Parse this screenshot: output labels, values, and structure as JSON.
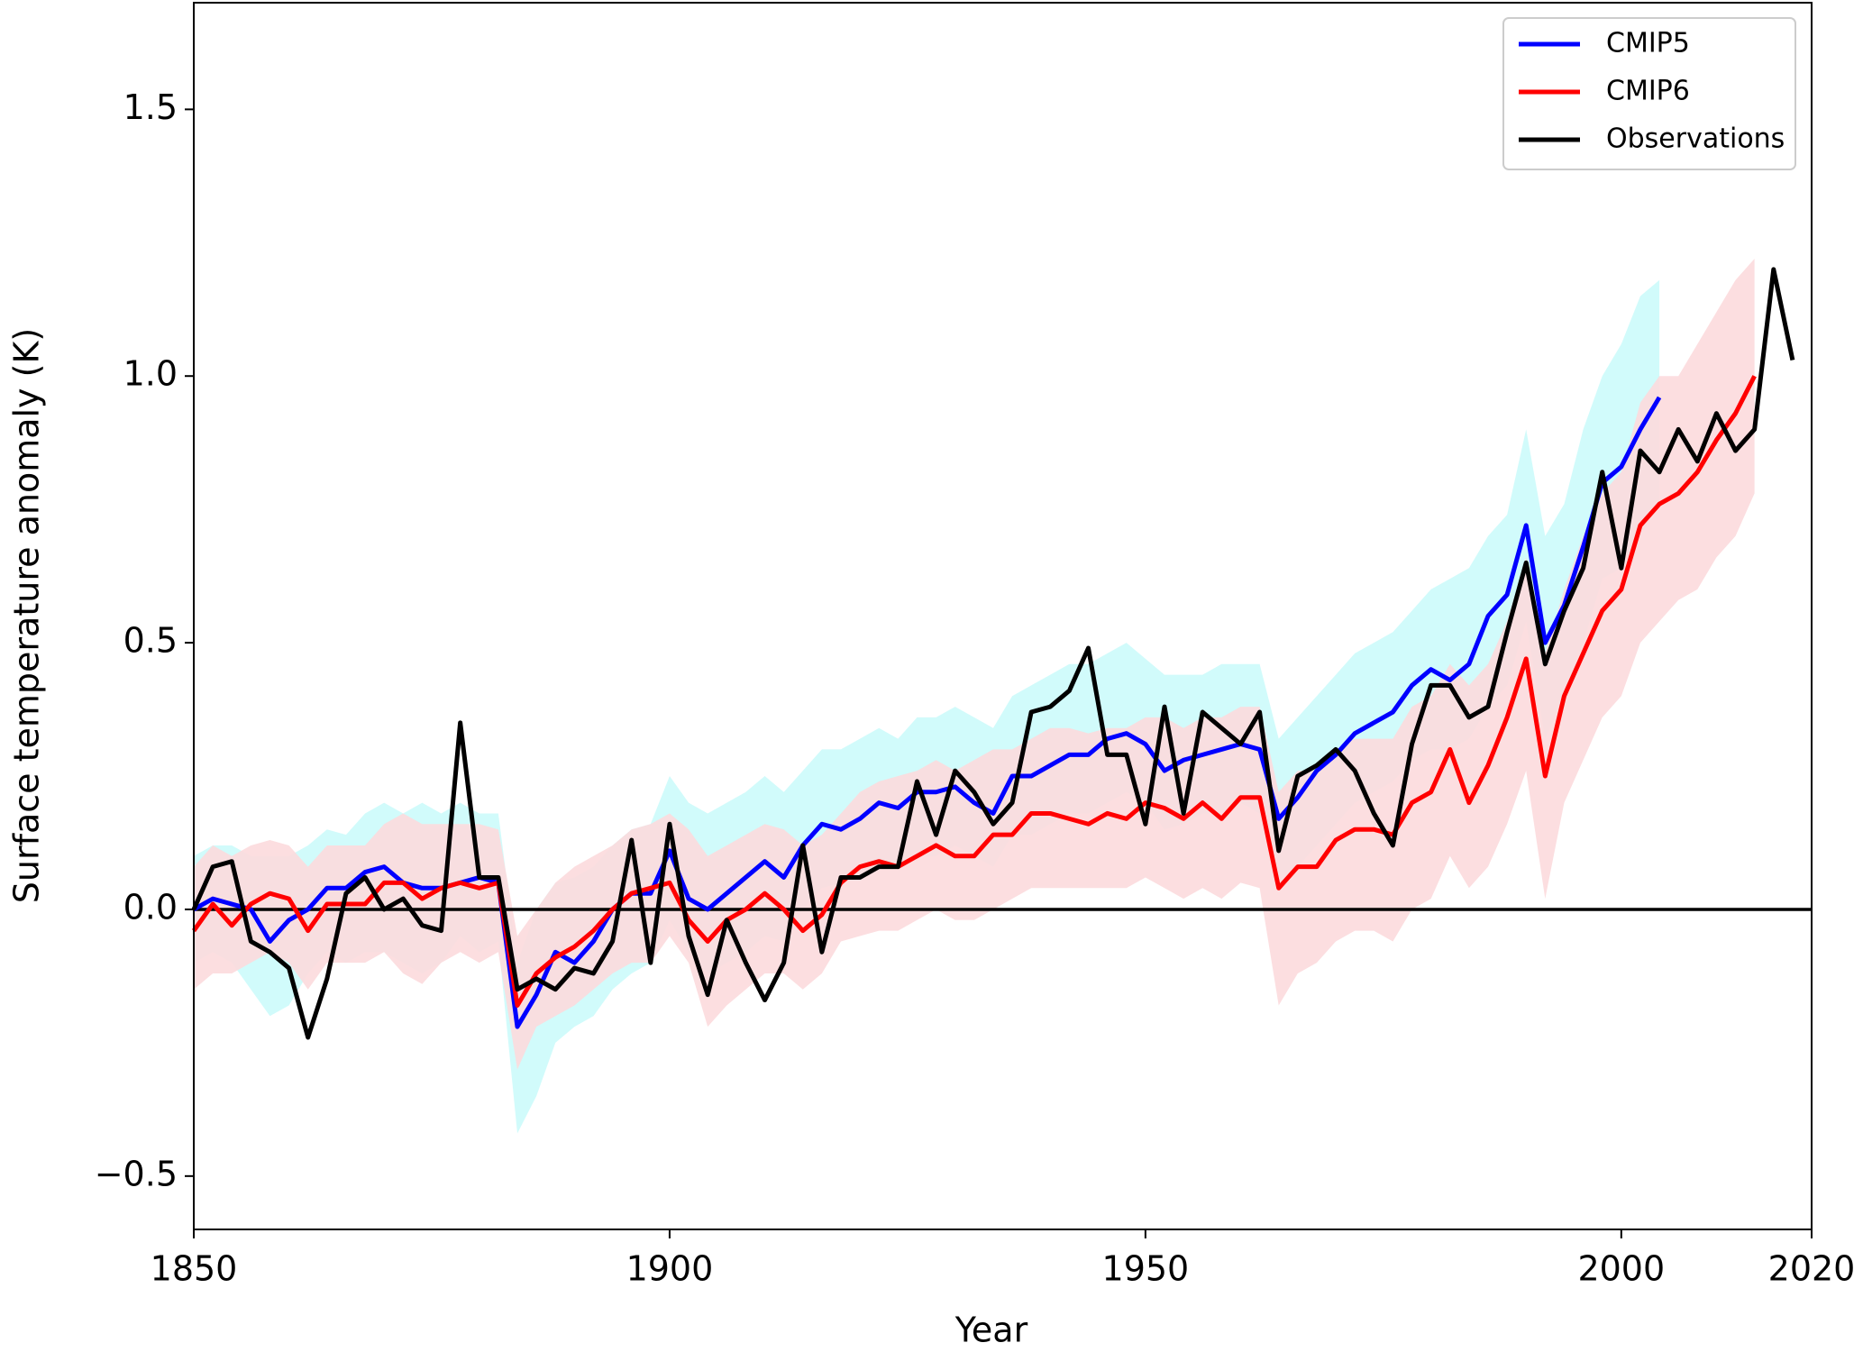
{
  "chart_data": {
    "type": "line",
    "x_label": "Year",
    "y_label": "Surface temperature anomaly (K)",
    "xlim": [
      1850,
      2020
    ],
    "ylim": [
      -0.6,
      1.7
    ],
    "xticks": [
      1850,
      1900,
      1950,
      2000,
      2020
    ],
    "yticks": [
      {
        "value": -0.5,
        "label": "−0.5"
      },
      {
        "value": 0,
        "label": "0.0"
      },
      0.5,
      {
        "value": 1,
        "label": "1.0"
      },
      1.5
    ],
    "legend": "upper right",
    "x": [
      1850,
      1852,
      1854,
      1856,
      1858,
      1860,
      1862,
      1864,
      1866,
      1868,
      1870,
      1872,
      1874,
      1876,
      1878,
      1880,
      1882,
      1884,
      1886,
      1888,
      1890,
      1892,
      1894,
      1896,
      1898,
      1900,
      1902,
      1904,
      1906,
      1908,
      1910,
      1912,
      1914,
      1916,
      1918,
      1920,
      1922,
      1924,
      1926,
      1928,
      1930,
      1932,
      1934,
      1936,
      1938,
      1940,
      1942,
      1944,
      1946,
      1948,
      1950,
      1952,
      1954,
      1956,
      1958,
      1960,
      1962,
      1964,
      1966,
      1968,
      1970,
      1972,
      1974,
      1976,
      1978,
      1980,
      1982,
      1984,
      1986,
      1988,
      1990,
      1992,
      1994,
      1996,
      1998,
      2000,
      2002,
      2004,
      2006,
      2008,
      2010,
      2012,
      2014,
      2016,
      2018
    ],
    "series": [
      {
        "name": "CMIP5",
        "color": "#0000ff",
        "band_color": "#ccfbfb",
        "values": [
          0.0,
          0.02,
          0.01,
          0.0,
          -0.06,
          -0.02,
          0.0,
          0.04,
          0.04,
          0.07,
          0.08,
          0.05,
          0.04,
          0.04,
          0.05,
          0.06,
          0.05,
          -0.22,
          -0.16,
          -0.08,
          -0.1,
          -0.06,
          0.0,
          0.03,
          0.03,
          0.11,
          0.02,
          0.0,
          0.03,
          0.06,
          0.09,
          0.06,
          0.12,
          0.16,
          0.15,
          0.17,
          0.2,
          0.19,
          0.22,
          0.22,
          0.23,
          0.2,
          0.18,
          0.25,
          0.25,
          0.27,
          0.29,
          0.29,
          0.32,
          0.33,
          0.31,
          0.26,
          0.28,
          0.29,
          0.3,
          0.31,
          0.3,
          0.17,
          0.21,
          0.26,
          0.29,
          0.33,
          0.35,
          0.37,
          0.42,
          0.45,
          0.43,
          0.46,
          0.55,
          0.59,
          0.72,
          0.5,
          0.57,
          0.68,
          0.8,
          0.83,
          0.9,
          0.96,
          null,
          null,
          null,
          null,
          null,
          null,
          null
        ],
        "lower": [
          -0.1,
          -0.08,
          -0.1,
          -0.15,
          -0.2,
          -0.18,
          -0.12,
          -0.08,
          -0.1,
          -0.08,
          -0.08,
          -0.1,
          -0.12,
          -0.1,
          -0.05,
          -0.08,
          -0.06,
          -0.42,
          -0.35,
          -0.25,
          -0.22,
          -0.2,
          -0.15,
          -0.12,
          -0.1,
          -0.02,
          -0.08,
          -0.12,
          -0.1,
          -0.08,
          -0.05,
          -0.06,
          0.0,
          0.04,
          0.05,
          0.06,
          0.08,
          0.08,
          0.1,
          0.1,
          0.12,
          0.1,
          0.08,
          0.14,
          0.14,
          0.16,
          0.18,
          0.18,
          0.2,
          0.22,
          0.2,
          0.15,
          0.16,
          0.18,
          0.18,
          0.2,
          0.18,
          0.04,
          0.08,
          0.12,
          0.16,
          0.2,
          0.22,
          0.24,
          0.28,
          0.3,
          0.3,
          0.32,
          0.38,
          0.42,
          0.54,
          0.32,
          0.4,
          0.5,
          0.62,
          0.64,
          0.7,
          0.76,
          null,
          null,
          null,
          null,
          null,
          null,
          null
        ],
        "upper": [
          0.1,
          0.12,
          0.12,
          0.1,
          0.1,
          0.1,
          0.12,
          0.15,
          0.14,
          0.18,
          0.2,
          0.18,
          0.2,
          0.18,
          0.2,
          0.18,
          0.18,
          -0.1,
          0.0,
          0.05,
          0.06,
          0.08,
          0.12,
          0.15,
          0.16,
          0.25,
          0.2,
          0.18,
          0.2,
          0.22,
          0.25,
          0.22,
          0.26,
          0.3,
          0.3,
          0.32,
          0.34,
          0.32,
          0.36,
          0.36,
          0.38,
          0.36,
          0.34,
          0.4,
          0.42,
          0.44,
          0.46,
          0.46,
          0.48,
          0.5,
          0.47,
          0.44,
          0.44,
          0.44,
          0.46,
          0.46,
          0.46,
          0.32,
          0.36,
          0.4,
          0.44,
          0.48,
          0.5,
          0.52,
          0.56,
          0.6,
          0.62,
          0.64,
          0.7,
          0.74,
          0.9,
          0.7,
          0.76,
          0.9,
          1.0,
          1.06,
          1.15,
          1.18,
          null,
          null,
          null,
          null,
          null,
          null,
          null
        ]
      },
      {
        "name": "CMIP6",
        "color": "#ff0000",
        "band_color": "#fcdadd",
        "values": [
          -0.04,
          0.01,
          -0.03,
          0.01,
          0.03,
          0.02,
          -0.04,
          0.01,
          0.01,
          0.01,
          0.05,
          0.05,
          0.02,
          0.04,
          0.05,
          0.04,
          0.05,
          -0.18,
          -0.12,
          -0.09,
          -0.07,
          -0.04,
          0.0,
          0.03,
          0.04,
          0.05,
          -0.02,
          -0.06,
          -0.02,
          0.0,
          0.03,
          0.0,
          -0.04,
          -0.01,
          0.05,
          0.08,
          0.09,
          0.08,
          0.1,
          0.12,
          0.1,
          0.1,
          0.14,
          0.14,
          0.18,
          0.18,
          0.17,
          0.16,
          0.18,
          0.17,
          0.2,
          0.19,
          0.17,
          0.2,
          0.17,
          0.21,
          0.21,
          0.04,
          0.08,
          0.08,
          0.13,
          0.15,
          0.15,
          0.14,
          0.2,
          0.22,
          0.3,
          0.2,
          0.27,
          0.36,
          0.47,
          0.25,
          0.4,
          0.48,
          0.56,
          0.6,
          0.72,
          0.76,
          0.78,
          0.82,
          0.88,
          0.93,
          1.0,
          null,
          null
        ],
        "lower": [
          -0.15,
          -0.12,
          -0.12,
          -0.1,
          -0.08,
          -0.1,
          -0.15,
          -0.1,
          -0.1,
          -0.1,
          -0.08,
          -0.12,
          -0.14,
          -0.1,
          -0.08,
          -0.1,
          -0.08,
          -0.3,
          -0.22,
          -0.2,
          -0.18,
          -0.15,
          -0.12,
          -0.1,
          -0.1,
          -0.05,
          -0.1,
          -0.22,
          -0.18,
          -0.15,
          -0.12,
          -0.12,
          -0.15,
          -0.12,
          -0.06,
          -0.05,
          -0.04,
          -0.04,
          -0.02,
          0.0,
          -0.02,
          -0.02,
          0.0,
          0.02,
          0.04,
          0.04,
          0.04,
          0.04,
          0.04,
          0.04,
          0.06,
          0.04,
          0.02,
          0.04,
          0.02,
          0.05,
          0.04,
          -0.18,
          -0.12,
          -0.1,
          -0.06,
          -0.04,
          -0.04,
          -0.06,
          0.0,
          0.02,
          0.1,
          0.04,
          0.08,
          0.16,
          0.26,
          0.02,
          0.2,
          0.28,
          0.36,
          0.4,
          0.5,
          0.54,
          0.58,
          0.6,
          0.66,
          0.7,
          0.78,
          null,
          null
        ],
        "upper": [
          0.08,
          0.12,
          0.1,
          0.12,
          0.13,
          0.12,
          0.08,
          0.12,
          0.12,
          0.12,
          0.16,
          0.18,
          0.16,
          0.16,
          0.16,
          0.16,
          0.15,
          -0.05,
          0.0,
          0.05,
          0.08,
          0.1,
          0.12,
          0.15,
          0.16,
          0.18,
          0.15,
          0.1,
          0.12,
          0.14,
          0.16,
          0.15,
          0.12,
          0.14,
          0.18,
          0.22,
          0.24,
          0.25,
          0.26,
          0.28,
          0.26,
          0.28,
          0.3,
          0.3,
          0.32,
          0.34,
          0.34,
          0.33,
          0.34,
          0.34,
          0.36,
          0.36,
          0.34,
          0.36,
          0.36,
          0.38,
          0.38,
          0.22,
          0.26,
          0.26,
          0.3,
          0.32,
          0.32,
          0.32,
          0.38,
          0.4,
          0.46,
          0.42,
          0.46,
          0.54,
          0.66,
          0.48,
          0.6,
          0.7,
          0.78,
          0.82,
          0.95,
          1.0,
          1.0,
          1.06,
          1.12,
          1.18,
          1.22,
          null,
          null
        ]
      },
      {
        "name": "Observations",
        "color": "#000000",
        "values": [
          0.0,
          0.08,
          0.09,
          -0.06,
          -0.08,
          -0.11,
          -0.24,
          -0.13,
          0.03,
          0.06,
          0.0,
          0.02,
          -0.03,
          -0.04,
          0.35,
          0.06,
          0.06,
          -0.15,
          -0.13,
          -0.15,
          -0.11,
          -0.12,
          -0.06,
          0.13,
          -0.1,
          0.16,
          -0.05,
          -0.16,
          -0.02,
          -0.1,
          -0.17,
          -0.1,
          0.12,
          -0.08,
          0.06,
          0.06,
          0.08,
          0.08,
          0.24,
          0.14,
          0.26,
          0.22,
          0.16,
          0.2,
          0.37,
          0.38,
          0.41,
          0.49,
          0.29,
          0.29,
          0.16,
          0.38,
          0.18,
          0.37,
          0.34,
          0.31,
          0.37,
          0.11,
          0.25,
          0.27,
          0.3,
          0.26,
          0.18,
          0.12,
          0.31,
          0.42,
          0.42,
          0.36,
          0.38,
          0.52,
          0.65,
          0.46,
          0.56,
          0.64,
          0.82,
          0.64,
          0.86,
          0.82,
          0.9,
          0.84,
          0.93,
          0.86,
          0.9,
          1.2,
          1.03
        ]
      }
    ]
  }
}
